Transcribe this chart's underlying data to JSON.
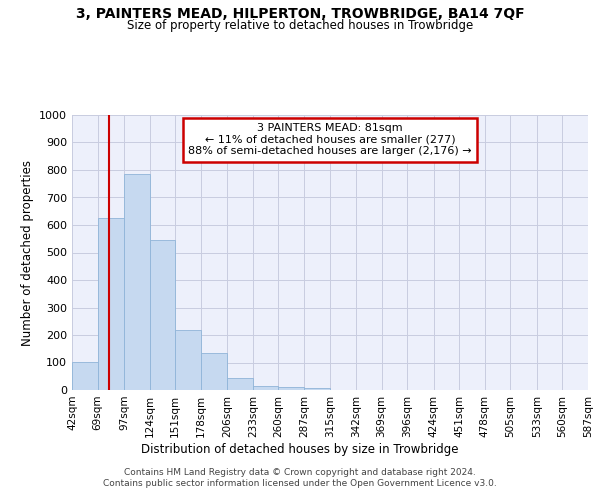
{
  "title": "3, PAINTERS MEAD, HILPERTON, TROWBRIDGE, BA14 7QF",
  "subtitle": "Size of property relative to detached houses in Trowbridge",
  "xlabel": "Distribution of detached houses by size in Trowbridge",
  "ylabel": "Number of detached properties",
  "bar_color": "#c6d9f0",
  "bar_edge_color": "#8fb4d8",
  "annotation_line_color": "#cc0000",
  "annotation_box_color": "#cc0000",
  "annotation_line1": "3 PAINTERS MEAD: 81sqm",
  "annotation_line2": "← 11% of detached houses are smaller (277)",
  "annotation_line3": "88% of semi-detached houses are larger (2,176) →",
  "property_sqm": 81,
  "bin_edges": [
    42,
    69,
    97,
    124,
    151,
    178,
    206,
    233,
    260,
    287,
    315,
    342,
    369,
    396,
    424,
    451,
    478,
    505,
    533,
    560,
    587
  ],
  "bar_heights": [
    102,
    624,
    787,
    546,
    220,
    134,
    42,
    16,
    10,
    9,
    0,
    0,
    0,
    0,
    0,
    0,
    0,
    0,
    0,
    0
  ],
  "ylim": [
    0,
    1000
  ],
  "footer_text": "Contains HM Land Registry data © Crown copyright and database right 2024.\nContains public sector information licensed under the Open Government Licence v3.0.",
  "bg_color": "#edf0fb",
  "grid_color": "#c8cce0"
}
